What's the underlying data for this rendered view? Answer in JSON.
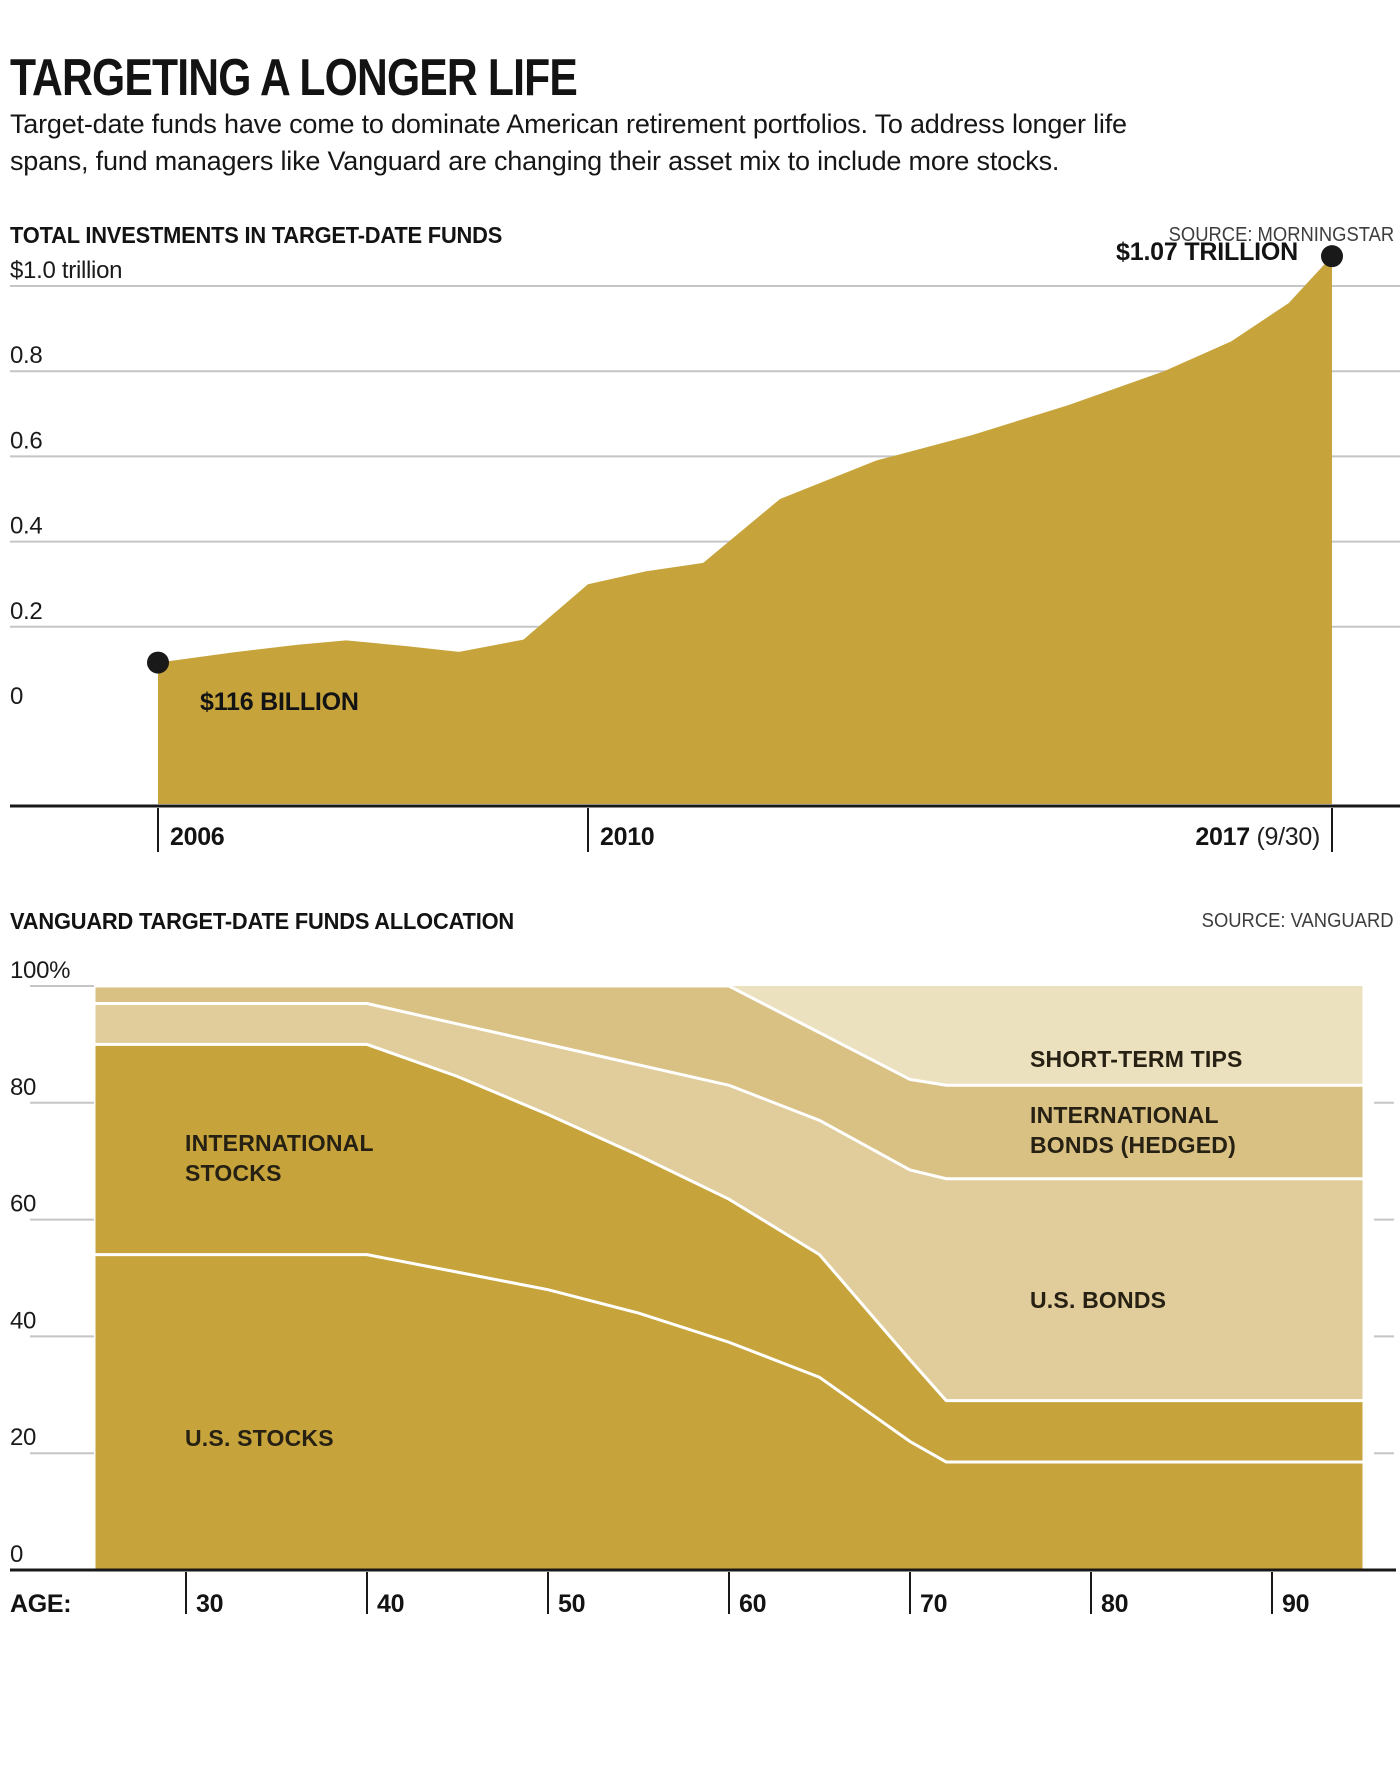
{
  "header": {
    "title": "TARGETING A LONGER LIFE",
    "subtitle_line1": "Target-date funds have come to dominate American retirement portfolios. To address longer life",
    "subtitle_line2": "spans,  fund managers like Vanguard are changing their asset mix to include more stocks."
  },
  "colors": {
    "gold": "#c7a43b",
    "us_bonds": "#e0cd9b",
    "intl_bonds": "#d9c184",
    "tips": "#ece1bf",
    "gridline": "#c5c5c5",
    "axis": "#191919",
    "white_separator": "#ffffff"
  },
  "chart_data": [
    {
      "type": "area",
      "title": "TOTAL INVESTMENTS IN TARGET-DATE FUNDS",
      "source": "SOURCE: MORNINGSTAR",
      "unit": "trillions of dollars",
      "x": [
        2006,
        2006.7,
        2007.3,
        2007.75,
        2008.3,
        2008.8,
        2009.4,
        2010,
        2010.6,
        2011.2,
        2012,
        2013,
        2014,
        2015,
        2016,
        2016.7,
        2017.3,
        2017.75
      ],
      "values": [
        0.116,
        0.14,
        0.158,
        0.168,
        0.155,
        0.141,
        0.17,
        0.3,
        0.33,
        0.35,
        0.5,
        0.59,
        0.65,
        0.72,
        0.8,
        0.87,
        0.96,
        1.07
      ],
      "ylim": [
        0,
        1.07
      ],
      "yticks": [
        1.0,
        0.8,
        0.6,
        0.4,
        0.2,
        0
      ],
      "ytick_labels": [
        "$1.0 trillion",
        "0.8",
        "0.6",
        "0.4",
        "0.2",
        "0"
      ],
      "xticks": [
        {
          "label": "2006",
          "year": 2006
        },
        {
          "label": "2010",
          "year": 2010
        },
        {
          "label": "2017",
          "suffix": " (9/30)",
          "year": 2017.75
        }
      ],
      "annotations": [
        {
          "text": "$116 BILLION",
          "year": 2006,
          "value": 0.116
        },
        {
          "text": "$1.07 TRILLION",
          "year": 2017.75,
          "value": 1.07
        }
      ]
    },
    {
      "type": "area-stacked",
      "title": "VANGUARD TARGET-DATE FUNDS ALLOCATION",
      "source": "SOURCE: VANGUARD",
      "unit": "percent of portfolio",
      "xlabel": "AGE:",
      "ages": [
        25,
        40,
        45,
        50,
        55,
        60,
        65,
        70,
        72,
        95
      ],
      "series": [
        {
          "name": "U.S. STOCKS",
          "key": "us_stocks",
          "color_key": "gold",
          "cum_top": [
            54,
            54,
            51,
            48,
            44,
            39,
            33,
            22,
            18.5,
            18.5
          ]
        },
        {
          "name": "INTERNATIONAL STOCKS",
          "key": "intl_stocks",
          "color_key": "gold",
          "cum_top": [
            90,
            90,
            84.5,
            78,
            71,
            63.5,
            54,
            36,
            29,
            29
          ]
        },
        {
          "name": "U.S. BONDS",
          "key": "us_bonds",
          "color_key": "us_bonds",
          "cum_top": [
            97,
            97,
            93.5,
            90,
            86.5,
            83,
            77,
            68.5,
            67,
            67
          ]
        },
        {
          "name": "INTERNATIONAL BONDS (HEDGED)",
          "key": "intl_bonds",
          "color_key": "intl_bonds",
          "cum_top": [
            100,
            100,
            100,
            100,
            100,
            100,
            92,
            84,
            83,
            83
          ]
        },
        {
          "name": "SHORT-TERM TIPS",
          "key": "tips",
          "color_key": "tips",
          "cum_top": [
            100,
            100,
            100,
            100,
            100,
            100,
            100,
            100,
            100,
            100
          ]
        }
      ],
      "yticks": [
        100,
        80,
        60,
        40,
        20,
        0
      ],
      "ytick_labels": [
        "100%",
        "80",
        "60",
        "40",
        "20",
        "0"
      ],
      "age_ticks": [
        30,
        40,
        50,
        60,
        70,
        80,
        90
      ],
      "band_labels": {
        "intl_stocks_line1": "INTERNATIONAL",
        "intl_stocks_line2": "STOCKS",
        "us_stocks": "U.S. STOCKS",
        "tips": "SHORT-TERM TIPS",
        "intl_bonds_line1": "INTERNATIONAL",
        "intl_bonds_line2": "BONDS (HEDGED)",
        "us_bonds": "U.S. BONDS"
      }
    }
  ]
}
